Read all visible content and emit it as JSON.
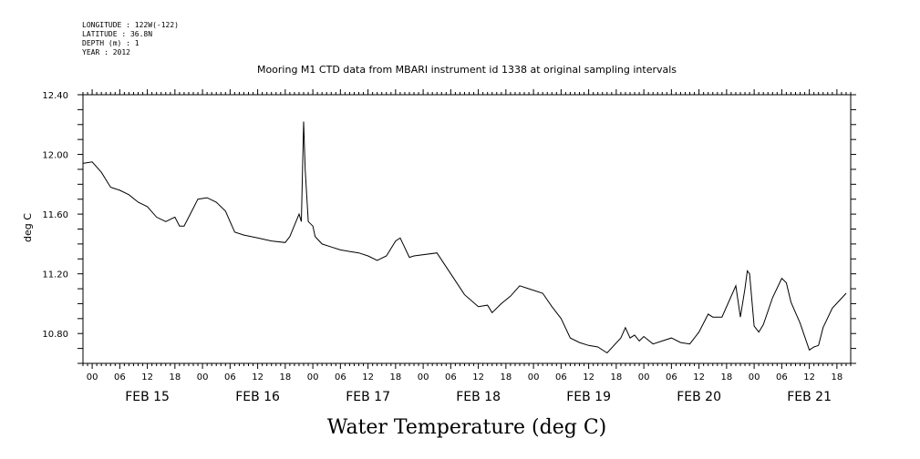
{
  "meta": {
    "longitude": "LONGITUDE : 122W(-122)",
    "latitude": "LATITUDE : 36.8N",
    "depth": "DEPTH (m) : 1",
    "year": "YEAR : 2012"
  },
  "chart_data": {
    "type": "line",
    "title": "Mooring M1 CTD data from MBARI instrument id 1338 at original sampling intervals",
    "xlabel": "",
    "ylabel": "deg C",
    "caption": "Water Temperature (deg C)",
    "ylim": [
      10.6,
      12.4
    ],
    "y_ticks": [
      {
        "v": 10.8,
        "label": "10.80"
      },
      {
        "v": 11.2,
        "label": "11.20"
      },
      {
        "v": 11.6,
        "label": "11.60"
      },
      {
        "v": 12.0,
        "label": "12.00"
      },
      {
        "v": 12.4,
        "label": "12.40"
      }
    ],
    "xlim": [
      "2012-02-14T22:00",
      "2012-02-21T21:00"
    ],
    "hour_tick_labels": [
      "00",
      "06",
      "12",
      "18",
      "00",
      "06",
      "12",
      "18",
      "00",
      "06",
      "12",
      "18",
      "00",
      "06",
      "12",
      "18",
      "00",
      "06",
      "12",
      "18",
      "00",
      "06",
      "12",
      "18",
      "00",
      "06",
      "12",
      "18"
    ],
    "day_labels": [
      "FEB 15",
      "FEB 16",
      "FEB 17",
      "FEB 18",
      "FEB 19",
      "FEB 20",
      "FEB 21"
    ],
    "grid": false,
    "series": [
      {
        "x": [
          "2012-02-14T22:00",
          "2012-02-15T00:00",
          "2012-02-15T02:00",
          "2012-02-15T04:00",
          "2012-02-15T06:00",
          "2012-02-15T08:00",
          "2012-02-15T10:00",
          "2012-02-15T12:00",
          "2012-02-15T14:00",
          "2012-02-15T16:00",
          "2012-02-15T18:00",
          "2012-02-15T19:00",
          "2012-02-15T20:00",
          "2012-02-15T22:00",
          "2012-02-15T23:00",
          "2012-02-16T01:00",
          "2012-02-16T03:00",
          "2012-02-16T05:00",
          "2012-02-16T07:00",
          "2012-02-16T09:00",
          "2012-02-16T12:00",
          "2012-02-16T15:00",
          "2012-02-16T18:00",
          "2012-02-16T19:00",
          "2012-02-16T21:00",
          "2012-02-16T21:30",
          "2012-02-16T22:00",
          "2012-02-16T22:20",
          "2012-02-16T23:00",
          "2012-02-17T00:00",
          "2012-02-17T00:30",
          "2012-02-17T02:00",
          "2012-02-17T04:00",
          "2012-02-17T06:00",
          "2012-02-17T08:00",
          "2012-02-17T10:00",
          "2012-02-17T12:00",
          "2012-02-17T14:00",
          "2012-02-17T16:00",
          "2012-02-17T18:00",
          "2012-02-17T19:00",
          "2012-02-17T21:00",
          "2012-02-17T22:00",
          "2012-02-18T03:00",
          "2012-02-18T06:00",
          "2012-02-18T09:00",
          "2012-02-18T12:00",
          "2012-02-18T14:00",
          "2012-02-18T15:00",
          "2012-02-18T17:00",
          "2012-02-18T19:00",
          "2012-02-18T21:00",
          "2012-02-18T23:00",
          "2012-02-19T02:00",
          "2012-02-19T04:00",
          "2012-02-19T06:00",
          "2012-02-19T08:00",
          "2012-02-19T10:00",
          "2012-02-19T12:00",
          "2012-02-19T14:00",
          "2012-02-19T16:00",
          "2012-02-19T19:00",
          "2012-02-19T20:00",
          "2012-02-19T21:00",
          "2012-02-19T22:00",
          "2012-02-19T23:00",
          "2012-02-20T00:00",
          "2012-02-20T02:00",
          "2012-02-20T04:00",
          "2012-02-20T06:00",
          "2012-02-20T08:00",
          "2012-02-20T10:00",
          "2012-02-20T12:00",
          "2012-02-20T14:00",
          "2012-02-20T15:00",
          "2012-02-20T17:00",
          "2012-02-20T20:00",
          "2012-02-20T21:00",
          "2012-02-20T22:00",
          "2012-02-20T22:30",
          "2012-02-20T23:00",
          "2012-02-21T00:00",
          "2012-02-21T01:00",
          "2012-02-21T02:00",
          "2012-02-21T04:00",
          "2012-02-21T06:00",
          "2012-02-21T07:00",
          "2012-02-21T08:00",
          "2012-02-21T10:00",
          "2012-02-21T12:00",
          "2012-02-21T13:00",
          "2012-02-21T14:00",
          "2012-02-21T15:00",
          "2012-02-21T17:00",
          "2012-02-21T20:00"
        ],
        "y": [
          11.94,
          11.95,
          11.88,
          11.78,
          11.76,
          11.73,
          11.68,
          11.65,
          11.58,
          11.55,
          11.58,
          11.52,
          11.52,
          11.64,
          11.7,
          11.71,
          11.68,
          11.62,
          11.48,
          11.46,
          11.44,
          11.42,
          11.41,
          11.45,
          11.6,
          11.55,
          12.22,
          11.9,
          11.55,
          11.52,
          11.45,
          11.4,
          11.38,
          11.36,
          11.35,
          11.34,
          11.32,
          11.29,
          11.32,
          11.42,
          11.44,
          11.31,
          11.32,
          11.34,
          11.2,
          11.06,
          10.98,
          10.99,
          10.94,
          11.0,
          11.05,
          11.12,
          11.1,
          11.07,
          10.98,
          10.9,
          10.77,
          10.74,
          10.72,
          10.71,
          10.67,
          10.77,
          10.84,
          10.77,
          10.79,
          10.75,
          10.78,
          10.73,
          10.75,
          10.77,
          10.74,
          10.73,
          10.81,
          10.93,
          10.91,
          10.91,
          11.12,
          10.91,
          11.1,
          11.22,
          11.2,
          10.85,
          10.81,
          10.86,
          11.04,
          11.17,
          11.14,
          11.01,
          10.87,
          10.69,
          10.71,
          10.72,
          10.84,
          10.97,
          11.07
        ]
      }
    ]
  }
}
